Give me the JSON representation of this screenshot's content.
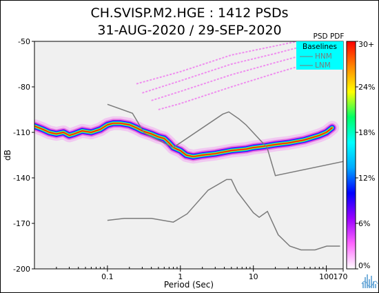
{
  "chart_data": {
    "type": "heatmap",
    "title_line1": "CH.SVISP.M2.HGE : 1412 PSDs",
    "title_line2": "31-AUG-2020 / 29-SEP-2020",
    "xlabel": "Period (Sec)",
    "ylabel": "dB",
    "x_scale": "log",
    "xlim": [
      0.01,
      170
    ],
    "ylim": [
      -200,
      -50
    ],
    "x_ticks": [
      0.1,
      1,
      10,
      100,
      170
    ],
    "x_tick_labels": [
      "0.1",
      "1",
      "10",
      "100",
      "170"
    ],
    "y_ticks": [
      -50,
      -80,
      -110,
      -140,
      -170,
      -200
    ],
    "y_tick_labels": [
      "-50",
      "-80",
      "-110",
      "-140",
      "-170",
      "-200"
    ],
    "colorbar": {
      "title": "PSD PDF",
      "ticks": [
        0,
        6,
        12,
        18,
        24,
        30
      ],
      "tick_labels": [
        "0%",
        "6%",
        "12%",
        "18%",
        "24%",
        "30+"
      ],
      "colors": [
        "#ffffff",
        "#ff66ff",
        "#9900ff",
        "#0000ff",
        "#00aaff",
        "#00ffff",
        "#00ff66",
        "#ffff00",
        "#ff8800",
        "#ff0000"
      ]
    },
    "legend": {
      "title": "Baselines",
      "items": [
        "HNM",
        "LNM"
      ],
      "placement": "top-right",
      "background": "#00ffff"
    },
    "mode_curve": [
      [
        0.0102,
        -106
      ],
      [
        0.013,
        -108
      ],
      [
        0.016,
        -110
      ],
      [
        0.02,
        -111
      ],
      [
        0.025,
        -110
      ],
      [
        0.03,
        -112
      ],
      [
        0.035,
        -111
      ],
      [
        0.045,
        -109
      ],
      [
        0.06,
        -110
      ],
      [
        0.08,
        -108
      ],
      [
        0.1,
        -105
      ],
      [
        0.12,
        -104
      ],
      [
        0.15,
        -104
      ],
      [
        0.2,
        -105
      ],
      [
        0.25,
        -107
      ],
      [
        0.3,
        -109
      ],
      [
        0.4,
        -111
      ],
      [
        0.5,
        -113
      ],
      [
        0.6,
        -114
      ],
      [
        0.7,
        -117
      ],
      [
        0.8,
        -120
      ],
      [
        1,
        -122
      ],
      [
        1.2,
        -125
      ],
      [
        1.5,
        -126
      ],
      [
        2,
        -125
      ],
      [
        3,
        -124
      ],
      [
        5,
        -122
      ],
      [
        8,
        -121
      ],
      [
        10,
        -120
      ],
      [
        15,
        -119
      ],
      [
        20,
        -118
      ],
      [
        30,
        -117
      ],
      [
        50,
        -115
      ],
      [
        80,
        -112
      ],
      [
        100,
        -110
      ],
      [
        120,
        -107
      ]
    ],
    "spread_curves": [
      [
        [
          0.25,
          -78
        ],
        [
          1,
          -70
        ],
        [
          5,
          -59
        ],
        [
          20,
          -53
        ],
        [
          40,
          -50
        ]
      ],
      [
        [
          0.3,
          -84
        ],
        [
          1,
          -76
        ],
        [
          5,
          -65
        ],
        [
          20,
          -58
        ],
        [
          60,
          -52
        ]
      ],
      [
        [
          0.4,
          -89
        ],
        [
          1,
          -83
        ],
        [
          5,
          -72
        ],
        [
          20,
          -64
        ],
        [
          100,
          -55
        ]
      ],
      [
        [
          0.5,
          -95
        ],
        [
          1,
          -91
        ],
        [
          5,
          -80
        ],
        [
          20,
          -71
        ],
        [
          120,
          -60
        ]
      ]
    ],
    "hnm": [
      [
        0.1,
        -91.5
      ],
      [
        0.22,
        -97.4
      ],
      [
        0.32,
        -110.5
      ],
      [
        0.8,
        -120
      ],
      [
        3.8,
        -98
      ],
      [
        4.6,
        -96.5
      ],
      [
        6.3,
        -101
      ],
      [
        7.9,
        -105
      ],
      [
        15.4,
        -120
      ],
      [
        20,
        -138.5
      ],
      [
        354.8,
        -126
      ]
    ],
    "lnm": [
      [
        0.1,
        -168
      ],
      [
        0.17,
        -166.7
      ],
      [
        0.4,
        -166.7
      ],
      [
        0.8,
        -169.2
      ],
      [
        1.24,
        -163.7
      ],
      [
        2.4,
        -148.1
      ],
      [
        4.3,
        -141.1
      ],
      [
        5,
        -141.1
      ],
      [
        6,
        -149
      ],
      [
        10,
        -163
      ],
      [
        12,
        -166
      ],
      [
        15.6,
        -162.1
      ],
      [
        21.9,
        -177.5
      ],
      [
        31.6,
        -185
      ],
      [
        45,
        -187.5
      ],
      [
        70,
        -187.5
      ],
      [
        101,
        -185
      ],
      [
        154,
        -185
      ]
    ]
  }
}
